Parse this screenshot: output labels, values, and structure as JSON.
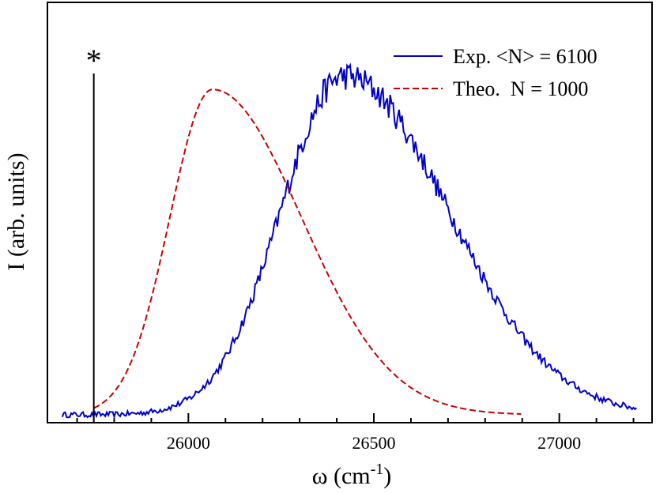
{
  "chart_data": {
    "type": "line",
    "title": "",
    "xlabel": {
      "base": "ω (cm",
      "sup": "-1",
      "close": ")"
    },
    "ylabel": "I (arb. units)",
    "xlim": [
      25620,
      27250
    ],
    "ylim": [
      0,
      1
    ],
    "x_ticks": [
      26000,
      26500,
      27000
    ],
    "x_tick_labels": [
      "26000",
      "26500",
      "27000"
    ],
    "y_ticks_shown": false,
    "legend_position": "top-right",
    "marker": {
      "x": 25745,
      "label": "*",
      "height": 1.03
    },
    "series": [
      {
        "name": "Exp. <N> = 6100",
        "color": "#0000cc",
        "style": "solid",
        "x_range": [
          25660,
          27210
        ],
        "peak_x": 26420,
        "peak_y": 1.0,
        "description": "noisy measured spectrum"
      },
      {
        "name": "Theo.  N = 1000",
        "color": "#cc0000",
        "style": "dashed",
        "x_range": [
          25745,
          26900
        ],
        "peak_x": 26065,
        "peak_y": 0.96
      }
    ]
  }
}
